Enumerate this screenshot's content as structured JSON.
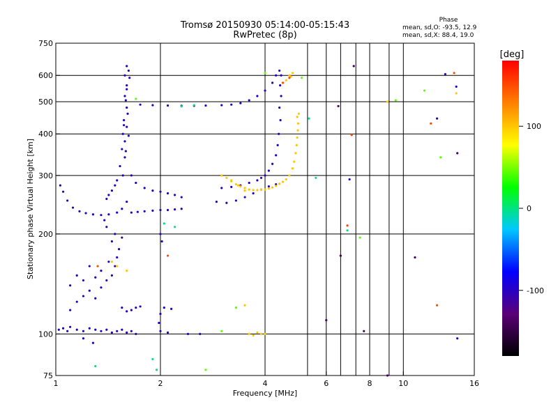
{
  "chart_data": {
    "type": "scatter",
    "title": "Tromsø 20150930 05:14:00-05:15:43",
    "subtitle": "RwPretec (8p)",
    "xlabel": "Frequency [MHz]",
    "ylabel": "Stationary phase Virtual Height [km]",
    "x_scale": "log2",
    "y_scale": "log",
    "xlim": [
      1,
      16
    ],
    "ylim": [
      75,
      750
    ],
    "x_ticks": [
      1,
      2,
      4,
      6,
      8,
      10,
      16
    ],
    "y_ticks": [
      75,
      100,
      200,
      300,
      400,
      500,
      600,
      750
    ],
    "x_gridlines": [
      2,
      4,
      6,
      8,
      10
    ],
    "x_minor_gridlines": [
      5.3,
      6.6,
      7.3,
      9.1
    ],
    "y_gridlines": [
      100,
      200,
      300,
      400,
      500,
      600
    ],
    "grid": true,
    "phase_stats": {
      "heading": "Phase",
      "line_o": "mean, sd,O: -93.5, 12.9",
      "line_x": "mean, sd,X:  88.4, 19.0"
    },
    "colorbar": {
      "label": "[deg]",
      "ticks": [
        "100",
        "0",
        "-100"
      ],
      "tick_values": [
        100,
        0,
        -100
      ],
      "range": [
        -180,
        180
      ],
      "colors": [
        "#000000",
        "#5a0078",
        "#0000ff",
        "#00c8ff",
        "#00ff00",
        "#ffff00",
        "#ff8000",
        "#ff0000"
      ]
    },
    "series": [
      {
        "phase": -100,
        "points": [
          [
            1.03,
            280
          ],
          [
            1.05,
            268
          ],
          [
            1.08,
            252
          ],
          [
            1.12,
            240
          ],
          [
            1.17,
            234
          ],
          [
            1.22,
            231
          ],
          [
            1.28,
            229
          ],
          [
            1.35,
            228
          ],
          [
            1.42,
            229
          ],
          [
            1.5,
            232
          ],
          [
            1.55,
            238
          ],
          [
            1.6,
            250
          ],
          [
            1.65,
            232
          ],
          [
            1.72,
            233
          ],
          [
            1.8,
            234
          ],
          [
            1.9,
            235
          ],
          [
            2.0,
            236
          ],
          [
            2.1,
            236
          ],
          [
            2.2,
            237
          ],
          [
            2.3,
            238
          ],
          [
            1.58,
            600
          ],
          [
            1.6,
            560
          ],
          [
            1.58,
            520
          ],
          [
            1.6,
            480
          ],
          [
            1.57,
            440
          ],
          [
            1.6,
            420
          ],
          [
            1.56,
            400
          ],
          [
            1.58,
            380
          ],
          [
            1.55,
            360
          ],
          [
            1.58,
            340
          ],
          [
            1.53,
            320
          ],
          [
            1.56,
            300
          ],
          [
            1.5,
            290
          ],
          [
            1.48,
            280
          ],
          [
            1.45,
            270
          ],
          [
            1.42,
            262
          ],
          [
            1.4,
            255
          ],
          [
            1.6,
            640
          ],
          [
            1.62,
            620
          ],
          [
            1.63,
            590
          ],
          [
            1.6,
            545
          ],
          [
            1.59,
            505
          ],
          [
            1.61,
            460
          ],
          [
            1.57,
            425
          ],
          [
            1.62,
            395
          ],
          [
            1.59,
            355
          ],
          [
            1.65,
            300
          ],
          [
            1.7,
            285
          ],
          [
            1.8,
            275
          ],
          [
            1.9,
            270
          ],
          [
            2.0,
            268
          ],
          [
            2.1,
            265
          ],
          [
            2.2,
            262
          ],
          [
            2.3,
            258
          ],
          [
            1.75,
            490
          ],
          [
            1.9,
            488
          ],
          [
            2.1,
            487
          ],
          [
            2.3,
            486
          ],
          [
            2.5,
            486
          ],
          [
            2.7,
            487
          ],
          [
            3.0,
            488
          ],
          [
            3.2,
            490
          ],
          [
            3.4,
            495
          ],
          [
            3.6,
            505
          ],
          [
            3.8,
            520
          ],
          [
            4.0,
            540
          ],
          [
            4.2,
            570
          ],
          [
            4.3,
            600
          ],
          [
            4.4,
            620
          ],
          [
            4.45,
            600
          ],
          [
            4.42,
            560
          ],
          [
            4.45,
            520
          ],
          [
            4.4,
            480
          ],
          [
            4.43,
            440
          ],
          [
            4.38,
            400
          ],
          [
            4.35,
            370
          ],
          [
            4.3,
            345
          ],
          [
            4.2,
            325
          ],
          [
            4.1,
            310
          ],
          [
            4.0,
            300
          ],
          [
            3.9,
            295
          ],
          [
            3.8,
            290
          ],
          [
            3.6,
            285
          ],
          [
            3.4,
            280
          ],
          [
            3.2,
            277
          ],
          [
            3.0,
            275
          ],
          [
            2.9,
            250
          ],
          [
            3.1,
            248
          ],
          [
            3.3,
            252
          ],
          [
            3.5,
            258
          ],
          [
            3.7,
            265
          ],
          [
            3.9,
            272
          ],
          [
            4.1,
            278
          ],
          [
            4.3,
            282
          ],
          [
            1.02,
            103
          ],
          [
            1.05,
            104
          ],
          [
            1.08,
            102
          ],
          [
            1.1,
            105
          ],
          [
            1.15,
            103
          ],
          [
            1.2,
            102
          ],
          [
            1.25,
            104
          ],
          [
            1.3,
            103
          ],
          [
            1.35,
            102
          ],
          [
            1.4,
            103
          ],
          [
            1.45,
            101
          ],
          [
            1.5,
            102
          ],
          [
            1.55,
            103
          ],
          [
            1.6,
            101
          ],
          [
            1.65,
            102
          ],
          [
            1.7,
            100
          ],
          [
            2.0,
            102
          ],
          [
            2.1,
            101
          ],
          [
            2.4,
            100
          ],
          [
            2.6,
            100
          ],
          [
            1.1,
            118
          ],
          [
            1.15,
            125
          ],
          [
            1.2,
            130
          ],
          [
            1.25,
            135
          ],
          [
            1.3,
            128
          ],
          [
            1.35,
            138
          ],
          [
            1.4,
            145
          ],
          [
            1.45,
            150
          ],
          [
            1.48,
            160
          ],
          [
            1.5,
            170
          ],
          [
            1.52,
            180
          ],
          [
            1.45,
            190
          ],
          [
            1.48,
            200
          ],
          [
            1.4,
            210
          ],
          [
            1.38,
            220
          ],
          [
            1.42,
            165
          ],
          [
            1.35,
            155
          ],
          [
            1.3,
            148
          ],
          [
            1.1,
            140
          ],
          [
            1.2,
            145
          ],
          [
            1.15,
            150
          ],
          [
            1.25,
            160
          ],
          [
            1.55,
            120
          ],
          [
            1.6,
            117
          ],
          [
            1.65,
            118
          ],
          [
            1.7,
            120
          ],
          [
            1.75,
            121
          ],
          [
            2.05,
            120
          ],
          [
            2.15,
            119
          ],
          [
            2.0,
            115
          ],
          [
            1.98,
            108
          ],
          [
            2.0,
            200
          ],
          [
            2.02,
            190
          ],
          [
            7.0,
            292
          ],
          [
            14.2,
            555
          ],
          [
            12.5,
            445
          ],
          [
            1.28,
            94
          ],
          [
            1.2,
            97
          ],
          [
            14.3,
            97
          ],
          [
            13.2,
            605
          ]
        ]
      },
      {
        "phase": 100,
        "points": [
          [
            3.0,
            300
          ],
          [
            3.1,
            295
          ],
          [
            3.2,
            288
          ],
          [
            3.3,
            282
          ],
          [
            3.4,
            278
          ],
          [
            3.5,
            275
          ],
          [
            3.6,
            272
          ],
          [
            3.7,
            271
          ],
          [
            3.8,
            271
          ],
          [
            3.9,
            272
          ],
          [
            4.0,
            272
          ],
          [
            4.1,
            274
          ],
          [
            4.2,
            276
          ],
          [
            4.3,
            279
          ],
          [
            4.4,
            283
          ],
          [
            4.5,
            287
          ],
          [
            4.6,
            292
          ],
          [
            4.7,
            300
          ],
          [
            4.8,
            315
          ],
          [
            4.85,
            330
          ],
          [
            4.9,
            350
          ],
          [
            4.93,
            370
          ],
          [
            4.95,
            390
          ],
          [
            4.97,
            410
          ],
          [
            4.98,
            430
          ],
          [
            4.95,
            450
          ],
          [
            5.0,
            460
          ],
          [
            4.6,
            580
          ],
          [
            4.7,
            600
          ],
          [
            4.8,
            610
          ],
          [
            4.75,
            595
          ],
          [
            3.2,
            290
          ],
          [
            3.35,
            280
          ],
          [
            3.5,
            270
          ],
          [
            3.6,
            100
          ],
          [
            3.7,
            99
          ],
          [
            3.8,
            101
          ],
          [
            3.9,
            100
          ],
          [
            4.0,
            100
          ],
          [
            3.5,
            122
          ],
          [
            1.45,
            165
          ],
          [
            1.5,
            160
          ],
          [
            1.6,
            155
          ],
          [
            14.2,
            530
          ],
          [
            9.0,
            500
          ]
        ]
      },
      {
        "phase": 0,
        "points": [
          [
            1.3,
            80
          ],
          [
            1.9,
            84
          ],
          [
            1.95,
            78
          ],
          [
            2.3,
            484
          ],
          [
            2.5,
            488
          ],
          [
            2.05,
            215
          ],
          [
            2.2,
            210
          ],
          [
            5.35,
            445
          ],
          [
            6.9,
            205
          ],
          [
            5.6,
            295
          ]
        ]
      },
      {
        "phase": 150,
        "points": [
          [
            4.5,
            570
          ],
          [
            4.7,
            590
          ],
          [
            6.6,
            172
          ],
          [
            6.9,
            212
          ],
          [
            7.1,
            397
          ],
          [
            12.0,
            430
          ],
          [
            1.32,
            160
          ],
          [
            2.1,
            172
          ],
          [
            14.0,
            610
          ],
          [
            12.5,
            122
          ]
        ]
      },
      {
        "phase": 45,
        "points": [
          [
            3.0,
            102
          ],
          [
            3.3,
            120
          ],
          [
            7.5,
            195
          ],
          [
            9.5,
            505
          ],
          [
            11.5,
            540
          ],
          [
            4.0,
            610
          ],
          [
            1.7,
            510
          ],
          [
            12.8,
            340
          ],
          [
            5.1,
            590
          ],
          [
            2.7,
            78
          ]
        ]
      },
      {
        "phase": -140,
        "points": [
          [
            6.6,
            172
          ],
          [
            9.0,
            75
          ],
          [
            14.3,
            350
          ],
          [
            10.8,
            170
          ],
          [
            6.0,
            110
          ],
          [
            7.7,
            102
          ],
          [
            6.5,
            485
          ],
          [
            7.2,
            640
          ],
          [
            1.55,
            195
          ]
        ]
      }
    ]
  }
}
